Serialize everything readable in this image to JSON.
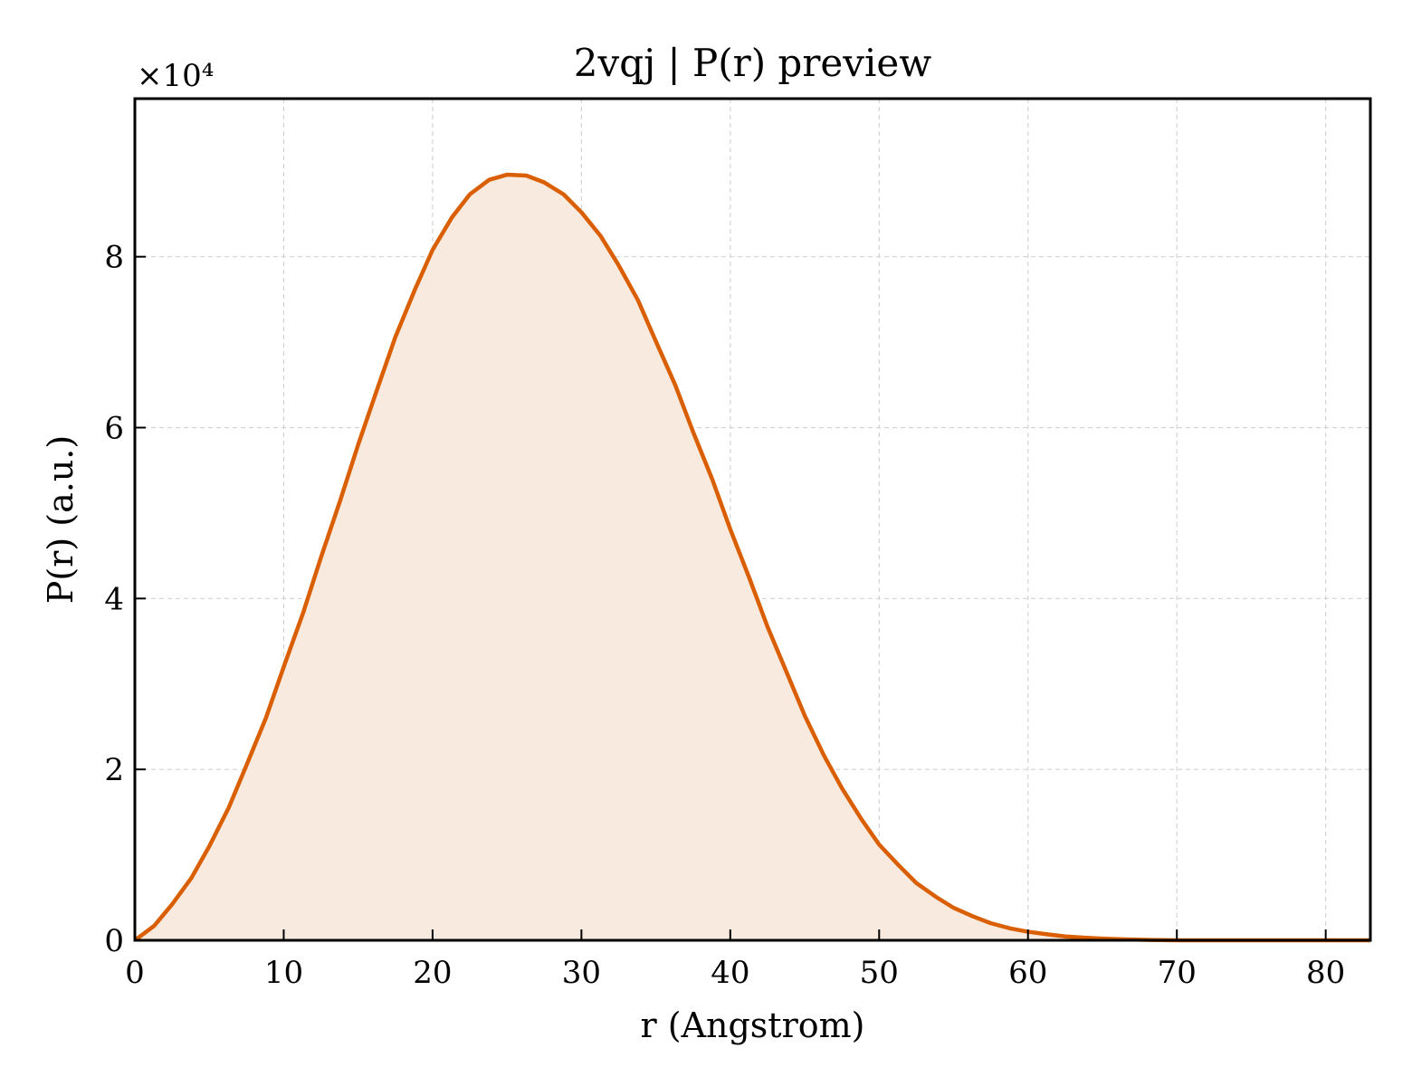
{
  "chart_data": {
    "type": "area",
    "title": "2vqj | P(r) preview",
    "xlabel": "r (Angstrom)",
    "ylabel": "P(r) (a.u.)",
    "y_multiplier": "×10⁴",
    "xlim": [
      0,
      83
    ],
    "ylim": [
      0,
      98500
    ],
    "xticks": [
      0,
      10,
      20,
      30,
      40,
      50,
      60,
      70,
      80
    ],
    "yticks": [
      0,
      20000,
      40000,
      60000,
      80000
    ],
    "ytick_labels": [
      "0",
      "2",
      "4",
      "6",
      "8"
    ],
    "grid": true,
    "colors": {
      "line": "#d95f02",
      "fill": "#f9eadf",
      "grid": "#d3d3d3"
    },
    "series": [
      {
        "x": [
          0,
          1.3,
          2.5,
          3.8,
          5,
          6.3,
          7.5,
          8.8,
          10,
          11.3,
          12.5,
          13.8,
          15,
          16.3,
          17.5,
          18.8,
          20,
          21.3,
          22.5,
          23.8,
          25,
          26.3,
          27.5,
          28.8,
          30,
          31.3,
          32.5,
          33.8,
          35,
          36.3,
          37.5,
          38.8,
          40,
          41.3,
          42.5,
          43.8,
          45,
          46.3,
          47.5,
          48.8,
          50,
          51.3,
          52.5,
          53.8,
          55,
          56.3,
          57.5,
          58.8,
          60,
          61.3,
          62.5,
          63.8,
          65,
          66.3,
          67.5,
          68.8,
          70,
          71.3,
          72.5,
          73.8,
          75,
          76.3,
          77.5,
          78.8,
          80,
          81.3,
          82.5,
          83
        ],
        "y": [
          0,
          1700,
          4200,
          7300,
          11000,
          15500,
          20500,
          26000,
          32000,
          38300,
          44800,
          51500,
          58000,
          64600,
          70600,
          76100,
          80800,
          84600,
          87300,
          89000,
          89600,
          89500,
          88700,
          87300,
          85200,
          82400,
          79000,
          74900,
          70100,
          65000,
          59500,
          53900,
          48100,
          42300,
          36700,
          31300,
          26300,
          21600,
          17800,
          14200,
          11200,
          8800,
          6700,
          5100,
          3800,
          2800,
          2000,
          1400,
          1000,
          700,
          450,
          300,
          200,
          120,
          60,
          30,
          0,
          0,
          0,
          0,
          0,
          0,
          0,
          0,
          0,
          0,
          0,
          0
        ]
      }
    ]
  }
}
